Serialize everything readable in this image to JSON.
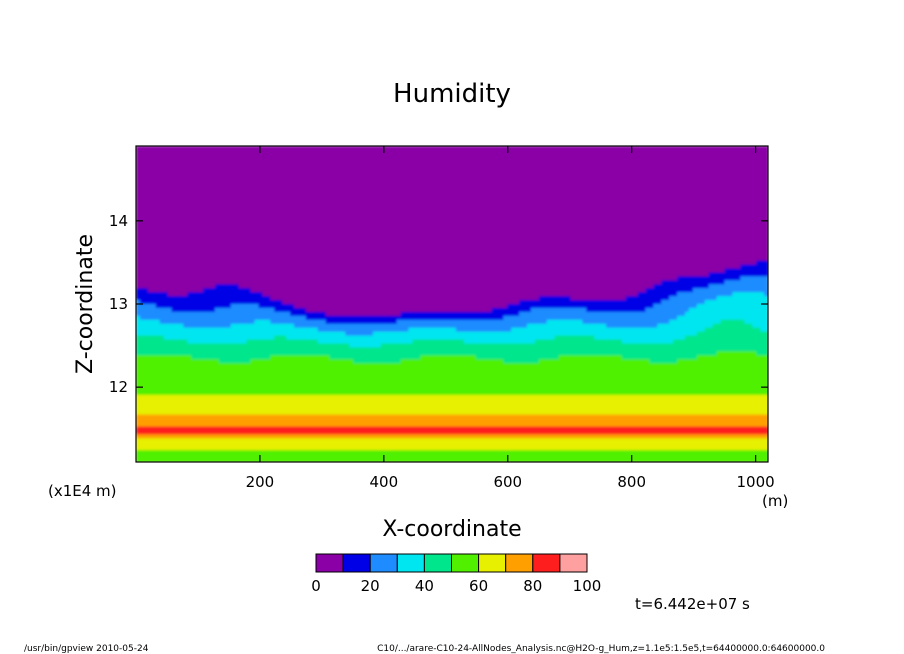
{
  "chart_data": {
    "type": "heatmap",
    "title": "Humidity",
    "xlabel": "X-coordinate",
    "ylabel": "Z-coordinate",
    "x_unit": "(m)",
    "y_unit": "(x1E4 m)",
    "xlim": [
      0,
      1020
    ],
    "ylim": [
      11.1,
      14.9
    ],
    "x_ticks": [
      200,
      400,
      600,
      800,
      1000
    ],
    "y_ticks": [
      12,
      13,
      14
    ],
    "colorbar": {
      "levels": [
        0,
        10,
        20,
        30,
        40,
        50,
        60,
        70,
        80,
        90,
        100
      ],
      "tick_labels": [
        "0",
        "20",
        "40",
        "60",
        "80",
        "100"
      ],
      "colors": [
        "#8a00a6",
        "#0000e6",
        "#1e8cff",
        "#00e6f0",
        "#00e68c",
        "#50f000",
        "#e6f000",
        "#ffa000",
        "#ff1e1e",
        "#ffa0a0"
      ]
    },
    "time_label": "t=6.442e+07 s"
  },
  "footer": {
    "left": "/usr/bin/gpview   2010-05-24",
    "right": "C10/.../arare-C10-24-AllNodes_Analysis.nc@H2O-g_Hum,z=1.1e5:1.5e5,t=64400000.0:64600000.0"
  }
}
